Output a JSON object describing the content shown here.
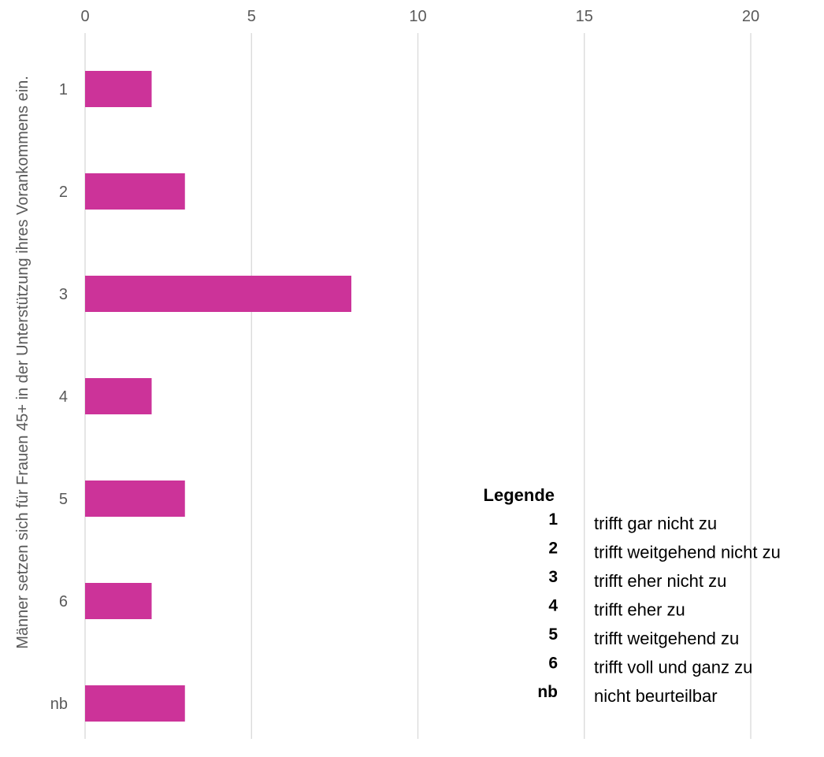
{
  "chart_data": {
    "type": "bar",
    "orientation": "horizontal",
    "categories": [
      "1",
      "2",
      "3",
      "4",
      "5",
      "6",
      "nb"
    ],
    "values": [
      2,
      3,
      8,
      2,
      3,
      2,
      3
    ],
    "xlim": [
      0,
      20
    ],
    "xticks": [
      0,
      5,
      10,
      15,
      20
    ],
    "x_axis_position": "top",
    "grid": "vertical",
    "title": "",
    "xlabel": "",
    "ylabel": "Männer setzen sich für Frauen 45+ in der Unterstützung ihres Vorankommens ein.",
    "bar_color": "#CC3399",
    "grid_color": "#D9D9D9",
    "legend": {
      "placement": "bottom-right",
      "title": "Legende",
      "entries": [
        {
          "code": "1",
          "label": "trifft gar nicht zu"
        },
        {
          "code": "2",
          "label": "trifft weitgehend nicht zu"
        },
        {
          "code": "3",
          "label": "trifft eher nicht zu"
        },
        {
          "code": "4",
          "label": "trifft eher zu"
        },
        {
          "code": "5",
          "label": "trifft weitgehend zu"
        },
        {
          "code": "6",
          "label": "trifft voll und ganz zu"
        },
        {
          "code": "nb",
          "label": "nicht beurteilbar"
        }
      ]
    }
  }
}
